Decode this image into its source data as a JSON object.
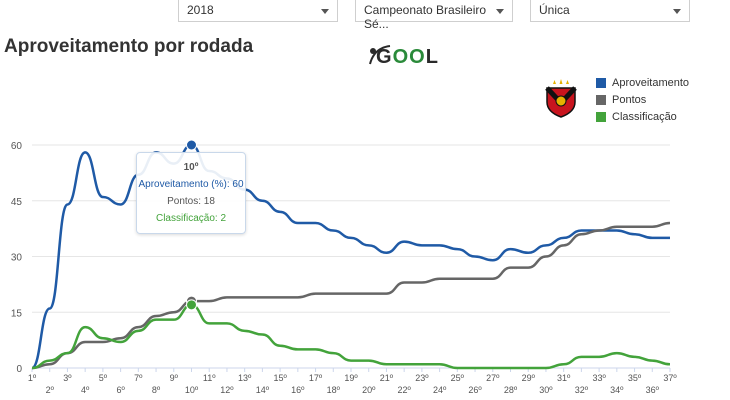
{
  "filters": {
    "year": "2018",
    "championship": "Campeonato Brasileiro Sé...",
    "phase": "Única"
  },
  "page_title": "Aproveitamento por rodada",
  "brand": {
    "left": "G",
    "mid": "O",
    "right": "L"
  },
  "colors": {
    "aproveitamento": "#1f5aa6",
    "pontos": "#666666",
    "classificacao": "#43a33b",
    "grid": "#e6e6e6"
  },
  "tooltip": {
    "header": "10º",
    "aproveitamento": "Aproveitamento (%): 60",
    "pontos": "Pontos: 18",
    "classificacao": "Classificação: 2",
    "round_index": 9
  },
  "chart_data": {
    "type": "line",
    "title": "",
    "xlabel": "",
    "ylabel": "",
    "ylim": [
      0,
      60
    ],
    "yticks": [
      0,
      15,
      30,
      45,
      60
    ],
    "grid": true,
    "legend_position": "top-right",
    "categories": [
      "1º",
      "2º",
      "3º",
      "4º",
      "5º",
      "6º",
      "7º",
      "8º",
      "9º",
      "10º",
      "11º",
      "12º",
      "13º",
      "14º",
      "15º",
      "16º",
      "17º",
      "18º",
      "19º",
      "20º",
      "21º",
      "22º",
      "23º",
      "24º",
      "25º",
      "26º",
      "27º",
      "28º",
      "29º",
      "30º",
      "31º",
      "32º",
      "33º",
      "34º",
      "35º",
      "36º",
      "37º"
    ],
    "series": [
      {
        "name": "Aproveitamento",
        "values": [
          0,
          16,
          44,
          58,
          46,
          44,
          52,
          58,
          55,
          60,
          53,
          51,
          48,
          45,
          42,
          39,
          39,
          37,
          35,
          33,
          31,
          34,
          33,
          33,
          32,
          30,
          29,
          32,
          31,
          33,
          35,
          37,
          37,
          37,
          36,
          35,
          35
        ]
      },
      {
        "name": "Pontos",
        "values": [
          0,
          1,
          4,
          7,
          7,
          8,
          11,
          14,
          15,
          18,
          18,
          19,
          19,
          19,
          19,
          19,
          20,
          20,
          20,
          20,
          20,
          23,
          23,
          24,
          24,
          24,
          24,
          27,
          27,
          30,
          33,
          36,
          37,
          38,
          38,
          38,
          39
        ]
      },
      {
        "name": "Classificação",
        "values": [
          0,
          2,
          4,
          11,
          8,
          7,
          10,
          13,
          13,
          17,
          12,
          12,
          10,
          9,
          6,
          5,
          5,
          4,
          2,
          2,
          1,
          1,
          1,
          1,
          0,
          0,
          0,
          0,
          0,
          0,
          1,
          3,
          3,
          4,
          3,
          2,
          1
        ]
      }
    ]
  }
}
